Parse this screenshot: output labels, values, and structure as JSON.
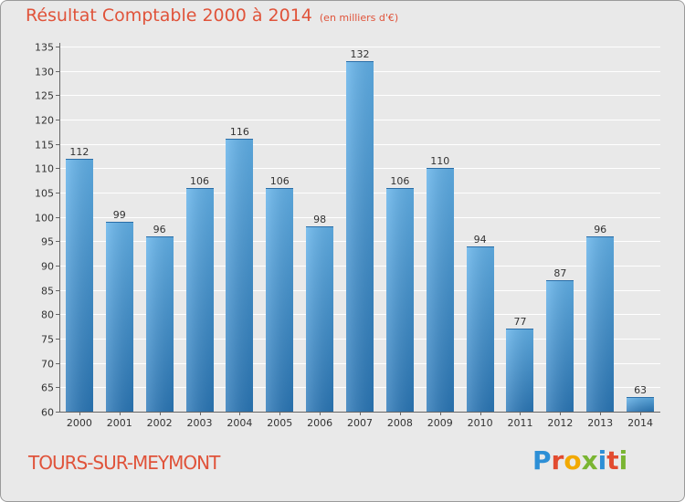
{
  "header": {
    "title": "Résultat Comptable 2000 à 2014",
    "unit": "(en milliers d'€)"
  },
  "footer": {
    "city": "TOURS-SUR-MEYMONT",
    "logo": "Proxiti"
  },
  "colors": {
    "bar_top": "#62b2ea",
    "bar_bottom": "#2b78b8",
    "text_accent": "#e0533a",
    "background": "#e9e9e9"
  },
  "chart_data": {
    "type": "bar",
    "title": "Résultat Comptable 2000 à 2014",
    "subtitle": "(en milliers d'€)",
    "xlabel": "",
    "ylabel": "",
    "categories": [
      "2000",
      "2001",
      "2002",
      "2003",
      "2004",
      "2005",
      "2006",
      "2007",
      "2008",
      "2009",
      "2010",
      "2011",
      "2012",
      "2013",
      "2014"
    ],
    "values": [
      112,
      99,
      96,
      106,
      116,
      106,
      98,
      132,
      106,
      110,
      94,
      77,
      87,
      96,
      63
    ],
    "ylim": [
      60,
      135
    ],
    "yticks": [
      60,
      65,
      70,
      75,
      80,
      85,
      90,
      95,
      100,
      105,
      110,
      115,
      120,
      125,
      130,
      135
    ],
    "grid": true
  }
}
